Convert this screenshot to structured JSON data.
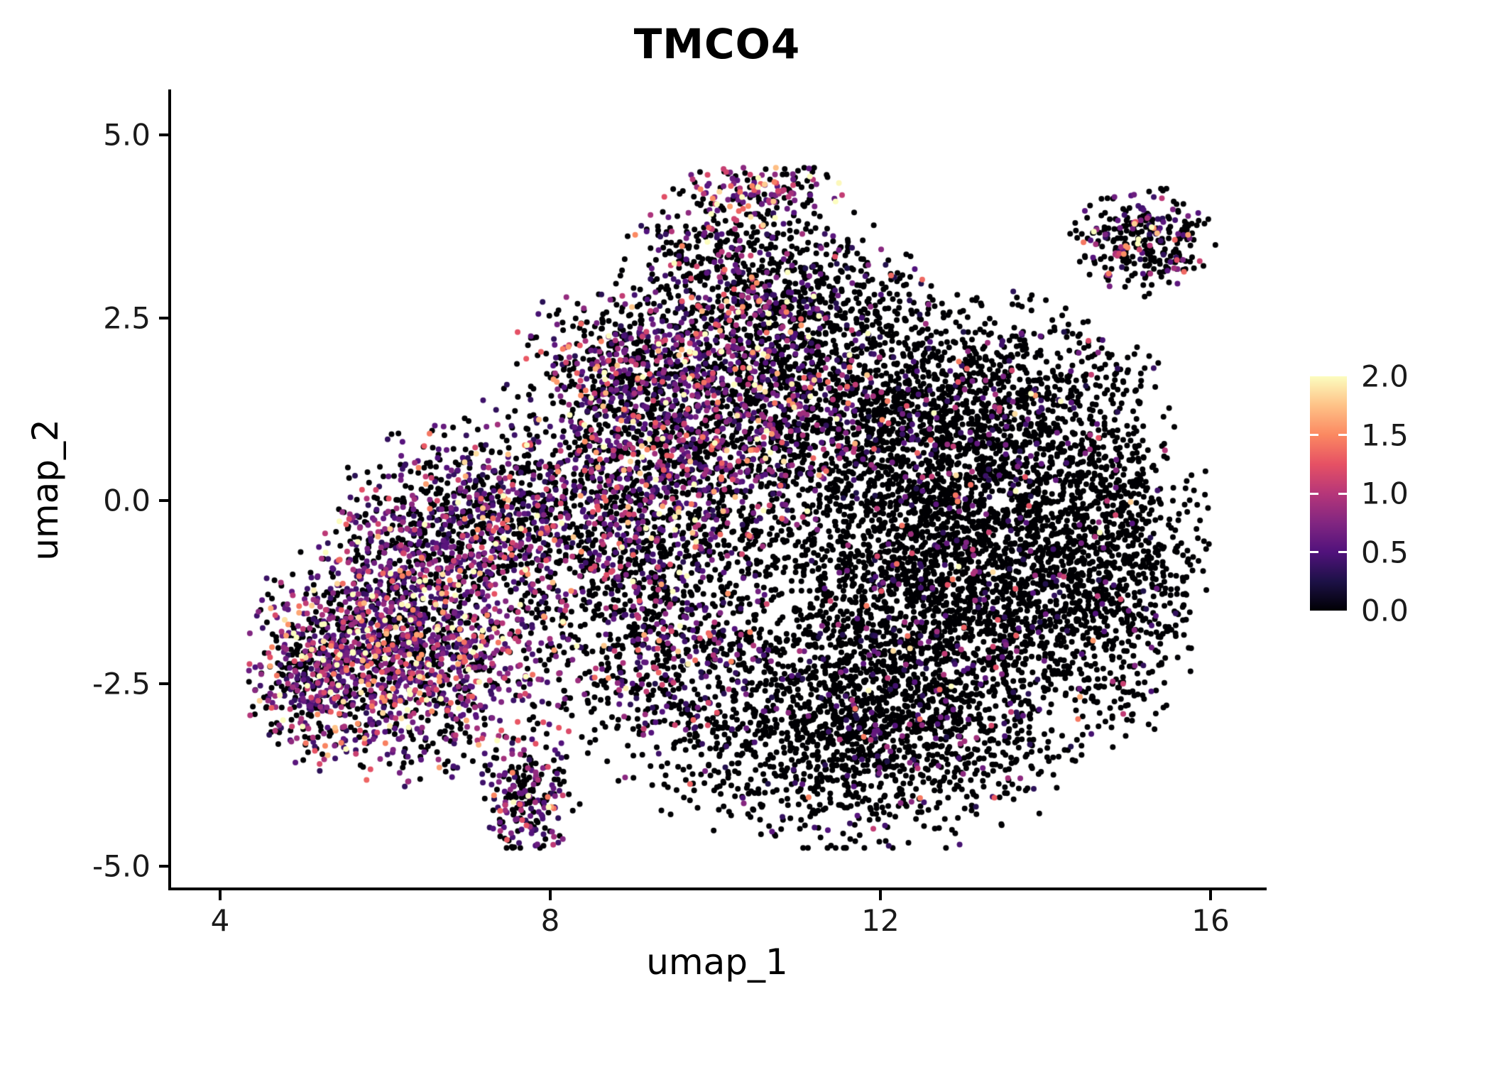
{
  "chart_data": {
    "type": "scatter",
    "title": "TMCO4",
    "subtitle": "",
    "xlabel": "umap_1",
    "ylabel": "umap_2",
    "xlim": [
      3.4,
      16.65
    ],
    "ylim": [
      -5.3,
      5.6
    ],
    "grid": false,
    "legend_position": "right",
    "point_radius_px": 4,
    "seed": 42,
    "xclip": [
      4.35,
      16.55
    ],
    "yclip": [
      -4.75,
      4.55
    ],
    "color_scale": {
      "name": "magma",
      "domain": [
        0,
        2
      ],
      "stops": [
        "#000004",
        "#1d1147",
        "#51127c",
        "#822681",
        "#b63679",
        "#e65164",
        "#fb8861",
        "#fec287",
        "#fcfdbf"
      ]
    },
    "clusters": [
      {
        "name": "left-arm-core",
        "cx": 6.3,
        "cy": -2.0,
        "sdx": 0.85,
        "sdy": 0.8,
        "n": 1600,
        "zero_frac": 0.4,
        "expr_min": 0.35,
        "expr_scale": 0.5
      },
      {
        "name": "left-arm-upper",
        "cx": 7.0,
        "cy": -0.3,
        "sdx": 0.75,
        "sdy": 0.6,
        "n": 800,
        "zero_frac": 0.52,
        "expr_min": 0.3,
        "expr_scale": 0.5
      },
      {
        "name": "left-tip",
        "cx": 5.2,
        "cy": -2.4,
        "sdx": 0.4,
        "sdy": 0.55,
        "n": 350,
        "zero_frac": 0.5,
        "expr_min": 0.3,
        "expr_scale": 0.55
      },
      {
        "name": "bottom-tail",
        "cx": 7.7,
        "cy": -4.0,
        "sdx": 0.28,
        "sdy": 0.42,
        "n": 230,
        "zero_frac": 0.52,
        "expr_min": 0.3,
        "expr_scale": 0.5
      },
      {
        "name": "mid-left-band",
        "cx": 8.9,
        "cy": 0.3,
        "sdx": 0.8,
        "sdy": 1.0,
        "n": 1100,
        "zero_frac": 0.6,
        "expr_min": 0.3,
        "expr_scale": 0.45
      },
      {
        "name": "mid-upper",
        "cx": 10.3,
        "cy": 1.2,
        "sdx": 0.85,
        "sdy": 0.8,
        "n": 1300,
        "zero_frac": 0.58,
        "expr_min": 0.3,
        "expr_scale": 0.5
      },
      {
        "name": "top-protrusion",
        "cx": 10.2,
        "cy": 3.1,
        "sdx": 0.6,
        "sdy": 0.6,
        "n": 500,
        "zero_frac": 0.65,
        "expr_min": 0.3,
        "expr_scale": 0.5
      },
      {
        "name": "top-tip",
        "cx": 10.5,
        "cy": 4.25,
        "sdx": 0.45,
        "sdy": 0.2,
        "n": 150,
        "zero_frac": 0.42,
        "expr_min": 0.5,
        "expr_scale": 0.5
      },
      {
        "name": "right-mass-core",
        "cx": 12.8,
        "cy": -1.0,
        "sdx": 1.25,
        "sdy": 1.25,
        "n": 3200,
        "zero_frac": 0.93,
        "expr_min": 0.25,
        "expr_scale": 0.4
      },
      {
        "name": "right-mass-upper",
        "cx": 13.0,
        "cy": 1.2,
        "sdx": 1.1,
        "sdy": 0.75,
        "n": 1400,
        "zero_frac": 0.9,
        "expr_min": 0.25,
        "expr_scale": 0.45
      },
      {
        "name": "right-mass-lower",
        "cx": 11.7,
        "cy": -3.2,
        "sdx": 1.2,
        "sdy": 0.75,
        "n": 1300,
        "zero_frac": 0.9,
        "expr_min": 0.25,
        "expr_scale": 0.4
      },
      {
        "name": "right-edge",
        "cx": 14.8,
        "cy": -0.8,
        "sdx": 0.55,
        "sdy": 1.1,
        "n": 650,
        "zero_frac": 0.93,
        "expr_min": 0.25,
        "expr_scale": 0.4
      },
      {
        "name": "satellite-top-right",
        "cx": 15.2,
        "cy": 3.55,
        "sdx": 0.38,
        "sdy": 0.33,
        "n": 300,
        "zero_frac": 0.75,
        "expr_min": 0.3,
        "expr_scale": 0.45
      },
      {
        "name": "neck",
        "cx": 9.3,
        "cy": -1.8,
        "sdx": 0.75,
        "sdy": 0.9,
        "n": 800,
        "zero_frac": 0.72,
        "expr_min": 0.3,
        "expr_scale": 0.45
      },
      {
        "name": "mid-top-left",
        "cx": 8.8,
        "cy": 1.9,
        "sdx": 0.55,
        "sdy": 0.5,
        "n": 300,
        "zero_frac": 0.62,
        "expr_min": 0.3,
        "expr_scale": 0.5
      },
      {
        "name": "bridge-top",
        "cx": 11.3,
        "cy": 2.6,
        "sdx": 0.7,
        "sdy": 0.6,
        "n": 500,
        "zero_frac": 0.85,
        "expr_min": 0.25,
        "expr_scale": 0.4
      }
    ]
  },
  "axes": {
    "x": {
      "title": "umap_1",
      "ticks": [
        {
          "value": 4,
          "label": "4"
        },
        {
          "value": 8,
          "label": "8"
        },
        {
          "value": 12,
          "label": "12"
        },
        {
          "value": 16,
          "label": "16"
        }
      ]
    },
    "y": {
      "title": "umap_2",
      "ticks": [
        {
          "value": 5.0,
          "label": "5.0"
        },
        {
          "value": 2.5,
          "label": "2.5"
        },
        {
          "value": 0.0,
          "label": "0.0"
        },
        {
          "value": -2.5,
          "label": "-2.5"
        },
        {
          "value": -5.0,
          "label": "-5.0"
        }
      ]
    }
  },
  "colorbar": {
    "domain": [
      0,
      2
    ],
    "ticks": [
      {
        "value": 2.0,
        "label": "2.0"
      },
      {
        "value": 1.5,
        "label": "1.5"
      },
      {
        "value": 1.0,
        "label": "1.0"
      },
      {
        "value": 0.5,
        "label": "0.5"
      },
      {
        "value": 0.0,
        "label": "0.0"
      }
    ]
  },
  "colors": {
    "background": "#ffffff",
    "axis_line": "#000000",
    "tick_label": "#1a1a1a",
    "title_text": "#000000"
  }
}
